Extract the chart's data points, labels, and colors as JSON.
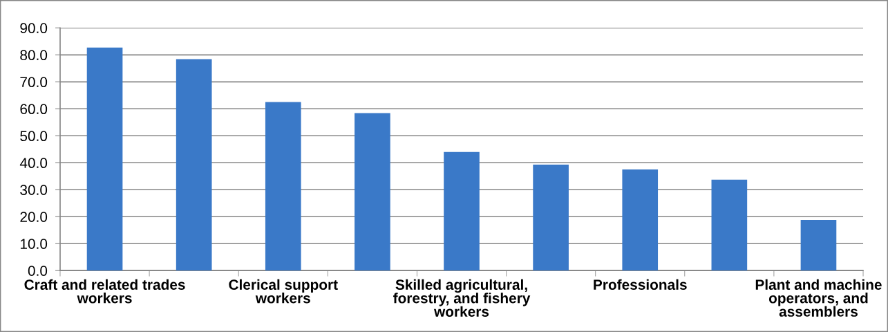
{
  "chart_data": {
    "type": "bar",
    "categories": [
      "Craft and related trades\nworkers",
      null,
      "Clerical support\nworkers",
      null,
      "Skilled agricultural,\nforestry, and fishery\nworkers",
      null,
      "Professionals",
      null,
      "Plant and machine\noperators, and\nassemblers"
    ],
    "values": [
      82.7,
      78.4,
      62.5,
      58.4,
      44.0,
      39.3,
      37.5,
      33.7,
      18.8
    ],
    "color": "#3a79c8",
    "ylim": [
      0,
      90
    ],
    "yticks": [
      {
        "value": 0,
        "label": "0.0"
      },
      {
        "value": 10,
        "label": "10.0"
      },
      {
        "value": 20,
        "label": "20.0"
      },
      {
        "value": 30,
        "label": "30.0"
      },
      {
        "value": 40,
        "label": "40.0"
      },
      {
        "value": 50,
        "label": "50.0"
      },
      {
        "value": 60,
        "label": "60.0"
      },
      {
        "value": 70,
        "label": "70.0"
      },
      {
        "value": 80,
        "label": "80.0"
      },
      {
        "value": 90,
        "label": "90.0"
      }
    ],
    "grid": "y"
  }
}
